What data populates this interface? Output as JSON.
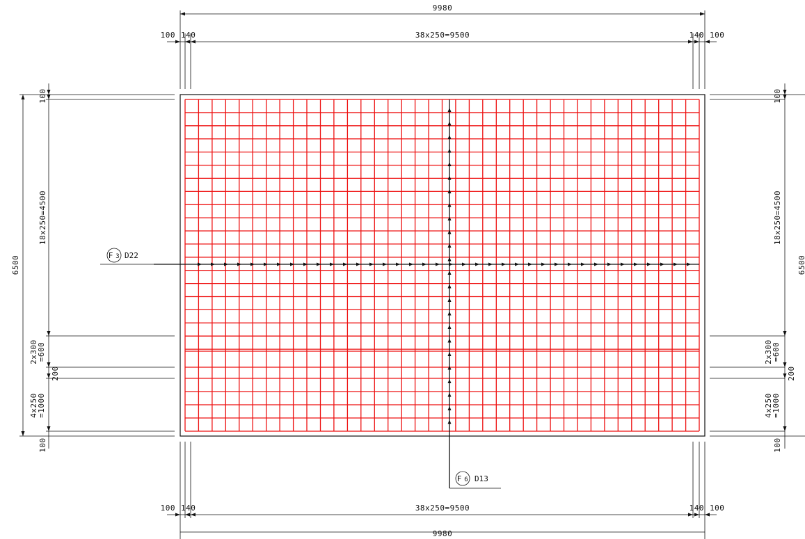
{
  "colors": {
    "rebar": "#ee1111",
    "line": "#111111",
    "background": "#ffffff"
  },
  "dimensions": {
    "total_width_top": "9980",
    "total_width_bottom": "9980",
    "cover_left_top": "100",
    "edge_left_top": "140",
    "span_top": "38x250=9500",
    "edge_right_top": "140",
    "cover_right_top": "100",
    "cover_left_bottom": "100",
    "edge_left_bottom": "140",
    "span_bottom": "38x250=9500",
    "edge_right_bottom": "140",
    "cover_right_bottom": "100",
    "total_height_left": "6500",
    "total_height_right": "6500",
    "vert_top_cover": "100",
    "vert_upper_span": "18x250=4500",
    "vert_mid_span_a": "2x300",
    "vert_mid_span_b": "=600",
    "vert_gap": "200",
    "vert_lower_span_a": "4x250",
    "vert_lower_span_b": "=1000",
    "vert_bottom_cover": "100"
  },
  "labels": {
    "horizontal_bar": {
      "mark": "F",
      "index": "3",
      "size": "D22"
    },
    "vertical_bar": {
      "mark": "F",
      "index": "6",
      "size": "D13"
    }
  }
}
